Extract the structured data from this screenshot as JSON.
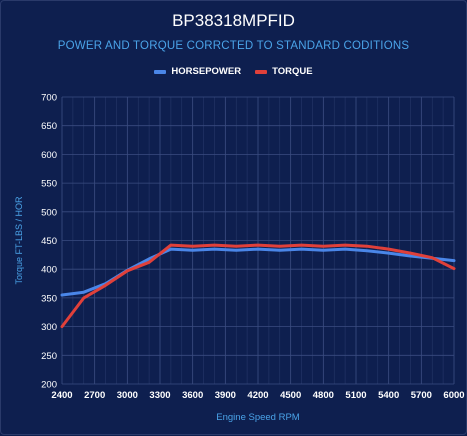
{
  "chart_data": {
    "type": "line",
    "title": "BP38318MPFID",
    "subtitle": "POWER AND TORQUE CORRCTED TO STANDARD CODITIONS",
    "xlabel": "Engine Speed RPM",
    "ylabel": "Torque FT-LBS / HOR",
    "xlim": [
      2400,
      6000
    ],
    "ylim": [
      200,
      700
    ],
    "xticks": [
      "2400",
      "2700",
      "3000",
      "3300",
      "3600",
      "3900",
      "4200",
      "4500",
      "4800",
      "5100",
      "5400",
      "5700",
      "6000"
    ],
    "yticks": [
      "200",
      "250",
      "300",
      "350",
      "400",
      "450",
      "500",
      "550",
      "600",
      "650",
      "700"
    ],
    "grid": true,
    "legend_position": "top",
    "x": [
      2400,
      2600,
      2800,
      3000,
      3200,
      3400,
      3600,
      3800,
      4000,
      4200,
      4400,
      4600,
      4800,
      5000,
      5200,
      5400,
      5600,
      5800,
      6000
    ],
    "series": [
      {
        "name": "HORSEPOWER",
        "color": "#4a86e8",
        "values": [
          355,
          360,
          375,
          398,
          418,
          435,
          433,
          435,
          433,
          435,
          433,
          435,
          433,
          435,
          432,
          428,
          423,
          419,
          415
        ]
      },
      {
        "name": "TORQUE",
        "color": "#e0403a",
        "values": [
          300,
          350,
          372,
          397,
          412,
          442,
          440,
          442,
          440,
          442,
          440,
          442,
          440,
          442,
          440,
          435,
          428,
          420,
          401
        ]
      }
    ]
  }
}
